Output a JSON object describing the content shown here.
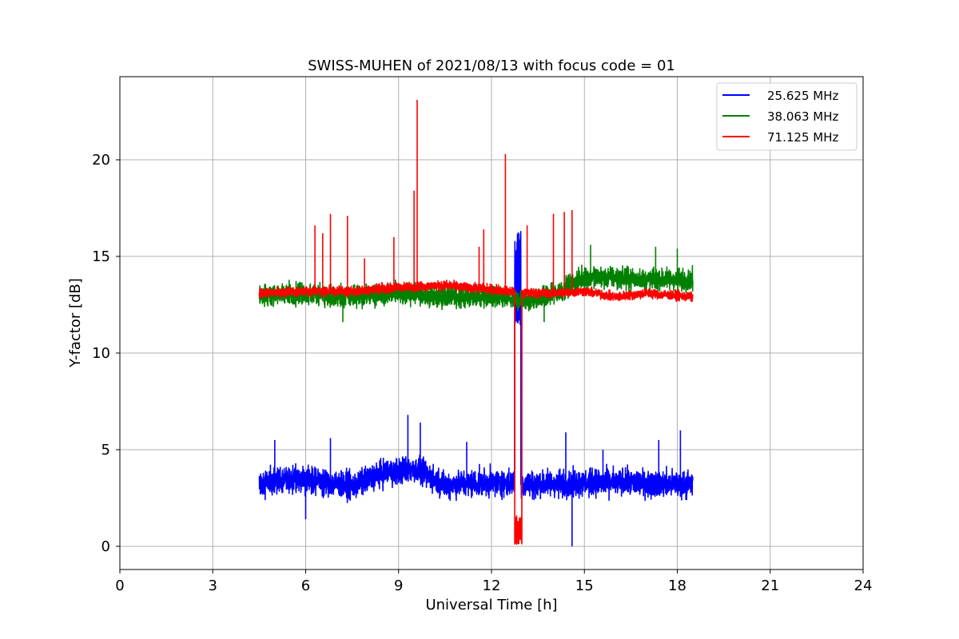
{
  "chart_data": {
    "type": "line",
    "title": "SWISS-MUHEN of 2021/08/13 with focus code = 01",
    "xlabel": "Universal Time [h]",
    "ylabel": "Y-factor [dB]",
    "xlim": [
      0,
      24
    ],
    "ylim": [
      -1.2,
      24.3
    ],
    "xticks": [
      0,
      3,
      6,
      9,
      12,
      15,
      18,
      21,
      24
    ],
    "xtick_labels": [
      "0",
      "3",
      "6",
      "9",
      "12",
      "15",
      "18",
      "21",
      "24"
    ],
    "yticks": [
      0,
      5,
      10,
      15,
      20
    ],
    "ytick_labels": [
      "0",
      "5",
      "10",
      "15",
      "20"
    ],
    "grid": true,
    "legend_position": "top-right",
    "x_range_of_data": [
      4.5,
      18.5
    ],
    "series": [
      {
        "name": "25.625 MHz",
        "color": "#0000ff",
        "baseline": [
          [
            4.5,
            3.3
          ],
          [
            6.0,
            3.5
          ],
          [
            7.5,
            3.1
          ],
          [
            8.5,
            3.8
          ],
          [
            9.5,
            4.0
          ],
          [
            10.5,
            3.2
          ],
          [
            12.0,
            3.3
          ],
          [
            13.5,
            3.2
          ],
          [
            15.0,
            3.3
          ],
          [
            16.5,
            3.3
          ],
          [
            18.5,
            3.2
          ]
        ],
        "noise_amplitude": 1.0,
        "spikes": [
          [
            5.0,
            5.5
          ],
          [
            6.8,
            5.6
          ],
          [
            9.3,
            6.8
          ],
          [
            9.7,
            6.4
          ],
          [
            11.2,
            5.4
          ],
          [
            14.4,
            5.9
          ],
          [
            15.6,
            5.0
          ],
          [
            17.4,
            5.5
          ],
          [
            18.1,
            6.0
          ]
        ],
        "dips": [
          [
            6.0,
            1.4
          ],
          [
            14.6,
            0.0
          ]
        ],
        "event": {
          "x": [
            12.75,
            12.95
          ],
          "low": 11.4,
          "high": 16.3
        }
      },
      {
        "name": "38.063 MHz",
        "color": "#008000",
        "baseline": [
          [
            4.5,
            13.0
          ],
          [
            6.0,
            13.1
          ],
          [
            7.5,
            12.9
          ],
          [
            9.0,
            13.1
          ],
          [
            10.5,
            12.9
          ],
          [
            12.0,
            12.9
          ],
          [
            13.0,
            12.7
          ],
          [
            14.0,
            13.0
          ],
          [
            15.0,
            13.9
          ],
          [
            16.0,
            13.9
          ],
          [
            17.0,
            13.8
          ],
          [
            18.5,
            13.8
          ]
        ],
        "noise_amplitude": 0.8,
        "spikes": [
          [
            15.2,
            15.6
          ],
          [
            17.3,
            15.5
          ],
          [
            18.0,
            15.4
          ]
        ],
        "dips": [
          [
            7.2,
            11.6
          ],
          [
            13.7,
            11.6
          ]
        ],
        "event": null
      },
      {
        "name": "71.125 MHz",
        "color": "#ff0000",
        "baseline": [
          [
            4.5,
            13.1
          ],
          [
            6.0,
            13.2
          ],
          [
            7.5,
            13.2
          ],
          [
            9.0,
            13.4
          ],
          [
            10.5,
            13.5
          ],
          [
            12.0,
            13.3
          ],
          [
            13.0,
            13.1
          ],
          [
            14.0,
            13.1
          ],
          [
            15.0,
            13.2
          ],
          [
            16.0,
            12.9
          ],
          [
            17.0,
            13.1
          ],
          [
            18.5,
            12.9
          ]
        ],
        "noise_amplitude": 0.35,
        "spikes": [
          [
            6.3,
            16.6
          ],
          [
            6.55,
            16.2
          ],
          [
            6.8,
            17.2
          ],
          [
            7.35,
            17.1
          ],
          [
            7.9,
            14.9
          ],
          [
            8.85,
            16.0
          ],
          [
            9.5,
            18.4
          ],
          [
            9.6,
            23.1
          ],
          [
            11.6,
            15.5
          ],
          [
            11.75,
            16.4
          ],
          [
            12.45,
            20.3
          ],
          [
            13.15,
            16.6
          ],
          [
            14.0,
            17.2
          ],
          [
            14.35,
            17.3
          ],
          [
            14.6,
            17.4
          ]
        ],
        "dips": [],
        "event": {
          "x": [
            12.75,
            12.98
          ],
          "low": 0.1,
          "high": 1.6
        }
      }
    ]
  }
}
